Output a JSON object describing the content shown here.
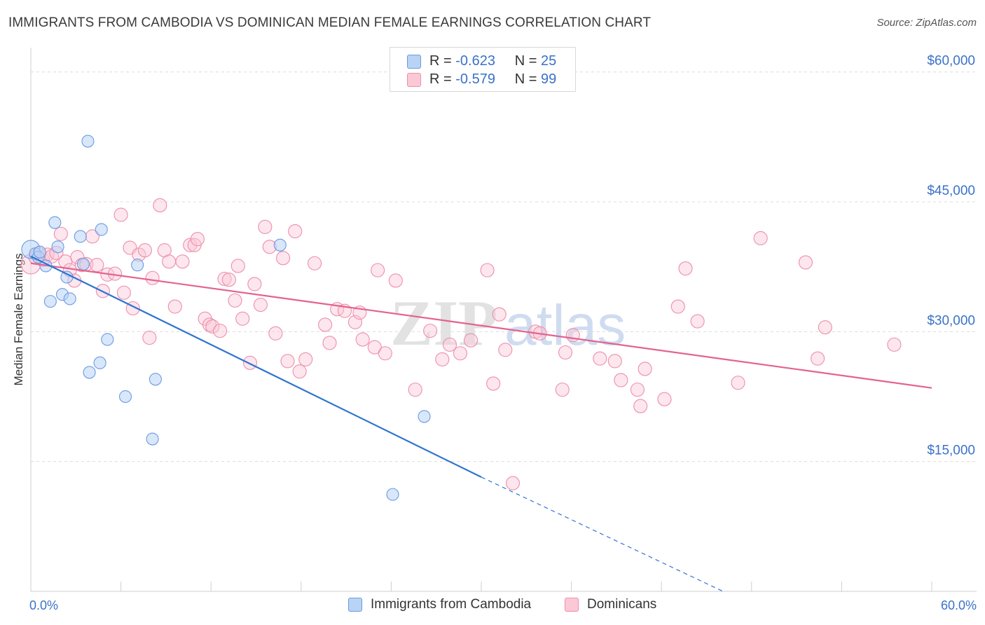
{
  "header": {
    "title": "IMMIGRANTS FROM CAMBODIA VS DOMINICAN MEDIAN FEMALE EARNINGS CORRELATION CHART",
    "source": "Source: ZipAtlas.com"
  },
  "watermark": {
    "zip": "ZIP",
    "atlas": "atlas"
  },
  "legend_top": {
    "rows": [
      {
        "r_label": "R =",
        "r_value": "-0.623",
        "n_label": "N =",
        "n_value": "25"
      },
      {
        "r_label": "R =",
        "r_value": "-0.579",
        "n_label": "N =",
        "n_value": "99"
      }
    ]
  },
  "legend_bottom": {
    "items": [
      "Immigrants from Cambodia",
      "Dominicans"
    ]
  },
  "colors": {
    "cambodia_fill": "#b9d3f5",
    "cambodia_stroke": "#6a9be0",
    "cambodia_line": "#2f74d0",
    "dominican_fill": "#fbc8d6",
    "dominican_stroke": "#ec8fab",
    "dominican_line": "#e4628f",
    "tick_text": "#3a72c8",
    "grid": "#dcdcdc"
  },
  "chart_data": {
    "type": "scatter",
    "title": "IMMIGRANTS FROM CAMBODIA VS DOMINICAN MEDIAN FEMALE EARNINGS CORRELATION CHART",
    "xlabel": "",
    "ylabel": "Median Female Earnings",
    "xlim": [
      0,
      60
    ],
    "ylim": [
      0,
      62000
    ],
    "x_tick_labels": [
      "0.0%",
      "60.0%"
    ],
    "y_ticks": [
      {
        "value": 15000,
        "label": "$15,000"
      },
      {
        "value": 30000,
        "label": "$30,000"
      },
      {
        "value": 45000,
        "label": "$45,000"
      },
      {
        "value": 60000,
        "label": "$60,000"
      }
    ],
    "grid": true,
    "legend_placement": "top-center and bottom",
    "series": [
      {
        "name": "Immigrants from Cambodia",
        "r": -0.623,
        "n": 25,
        "points": [
          [
            0.0,
            39500
          ],
          [
            0.3,
            39000
          ],
          [
            0.5,
            38600
          ],
          [
            0.6,
            39200
          ],
          [
            1.0,
            37600
          ],
          [
            1.3,
            33500
          ],
          [
            1.6,
            42600
          ],
          [
            1.8,
            39800
          ],
          [
            2.1,
            34300
          ],
          [
            2.4,
            36300
          ],
          [
            2.6,
            33800
          ],
          [
            3.3,
            41000
          ],
          [
            3.5,
            37800
          ],
          [
            3.8,
            52000
          ],
          [
            3.9,
            25300
          ],
          [
            4.6,
            26400
          ],
          [
            4.7,
            41800
          ],
          [
            5.1,
            29100
          ],
          [
            6.3,
            22500
          ],
          [
            7.1,
            37700
          ],
          [
            8.1,
            17600
          ],
          [
            8.3,
            24500
          ],
          [
            16.6,
            40000
          ],
          [
            24.1,
            11200
          ],
          [
            26.2,
            20200
          ]
        ],
        "trend": {
          "x0": 0,
          "y0": 38700,
          "x1": 30,
          "y1": 13200,
          "dash_to_x": 46.1,
          "dash_to_y": 0
        }
      },
      {
        "name": "Dominicans",
        "r": -0.579,
        "n": 99,
        "points": [
          [
            0.0,
            37800
          ],
          [
            0.3,
            38600
          ],
          [
            0.5,
            39000
          ],
          [
            0.8,
            38300
          ],
          [
            1.1,
            38900
          ],
          [
            1.4,
            38700
          ],
          [
            1.7,
            39100
          ],
          [
            2.0,
            41300
          ],
          [
            2.3,
            38100
          ],
          [
            2.6,
            37100
          ],
          [
            2.9,
            35900
          ],
          [
            3.1,
            38600
          ],
          [
            3.4,
            37700
          ],
          [
            3.7,
            37800
          ],
          [
            4.1,
            41000
          ],
          [
            4.4,
            37700
          ],
          [
            4.8,
            34700
          ],
          [
            5.1,
            36600
          ],
          [
            5.6,
            36700
          ],
          [
            6.0,
            43500
          ],
          [
            6.2,
            34500
          ],
          [
            6.6,
            39700
          ],
          [
            6.8,
            32700
          ],
          [
            7.2,
            38900
          ],
          [
            7.6,
            39400
          ],
          [
            7.9,
            29300
          ],
          [
            8.1,
            36200
          ],
          [
            8.6,
            44600
          ],
          [
            8.9,
            39400
          ],
          [
            9.2,
            38100
          ],
          [
            9.6,
            32900
          ],
          [
            10.1,
            38100
          ],
          [
            10.6,
            40000
          ],
          [
            10.9,
            40000
          ],
          [
            11.1,
            40700
          ],
          [
            11.6,
            31500
          ],
          [
            11.9,
            30800
          ],
          [
            12.1,
            30600
          ],
          [
            12.6,
            30100
          ],
          [
            12.9,
            36100
          ],
          [
            13.2,
            36000
          ],
          [
            13.6,
            33600
          ],
          [
            13.8,
            37600
          ],
          [
            14.1,
            31500
          ],
          [
            14.6,
            26400
          ],
          [
            14.9,
            35500
          ],
          [
            15.3,
            33100
          ],
          [
            15.6,
            42100
          ],
          [
            15.9,
            39800
          ],
          [
            16.3,
            29800
          ],
          [
            16.8,
            38500
          ],
          [
            17.1,
            26600
          ],
          [
            17.6,
            41600
          ],
          [
            17.9,
            25400
          ],
          [
            18.3,
            26800
          ],
          [
            18.9,
            37900
          ],
          [
            19.6,
            30800
          ],
          [
            19.9,
            28700
          ],
          [
            20.4,
            32600
          ],
          [
            20.9,
            32400
          ],
          [
            21.6,
            31100
          ],
          [
            21.9,
            32200
          ],
          [
            22.1,
            29100
          ],
          [
            22.9,
            28200
          ],
          [
            23.1,
            37100
          ],
          [
            23.6,
            27500
          ],
          [
            24.3,
            35900
          ],
          [
            25.6,
            23300
          ],
          [
            26.6,
            30100
          ],
          [
            27.4,
            26800
          ],
          [
            27.9,
            28500
          ],
          [
            28.6,
            27500
          ],
          [
            29.3,
            29000
          ],
          [
            30.4,
            37100
          ],
          [
            30.8,
            24000
          ],
          [
            31.2,
            32000
          ],
          [
            31.6,
            27900
          ],
          [
            32.1,
            12500
          ],
          [
            33.6,
            30000
          ],
          [
            33.9,
            29800
          ],
          [
            35.4,
            23300
          ],
          [
            35.6,
            27600
          ],
          [
            36.1,
            29600
          ],
          [
            37.9,
            26900
          ],
          [
            38.9,
            26600
          ],
          [
            39.3,
            24400
          ],
          [
            40.4,
            23300
          ],
          [
            40.6,
            21400
          ],
          [
            40.9,
            25700
          ],
          [
            42.2,
            22200
          ],
          [
            43.1,
            32900
          ],
          [
            43.6,
            37300
          ],
          [
            44.4,
            31200
          ],
          [
            47.1,
            24100
          ],
          [
            48.6,
            40800
          ],
          [
            51.6,
            38000
          ],
          [
            52.4,
            26900
          ],
          [
            52.9,
            30500
          ],
          [
            57.5,
            28500
          ]
        ],
        "trend": {
          "x0": 0,
          "y0": 37900,
          "x1": 60,
          "y1": 23500
        }
      }
    ]
  }
}
